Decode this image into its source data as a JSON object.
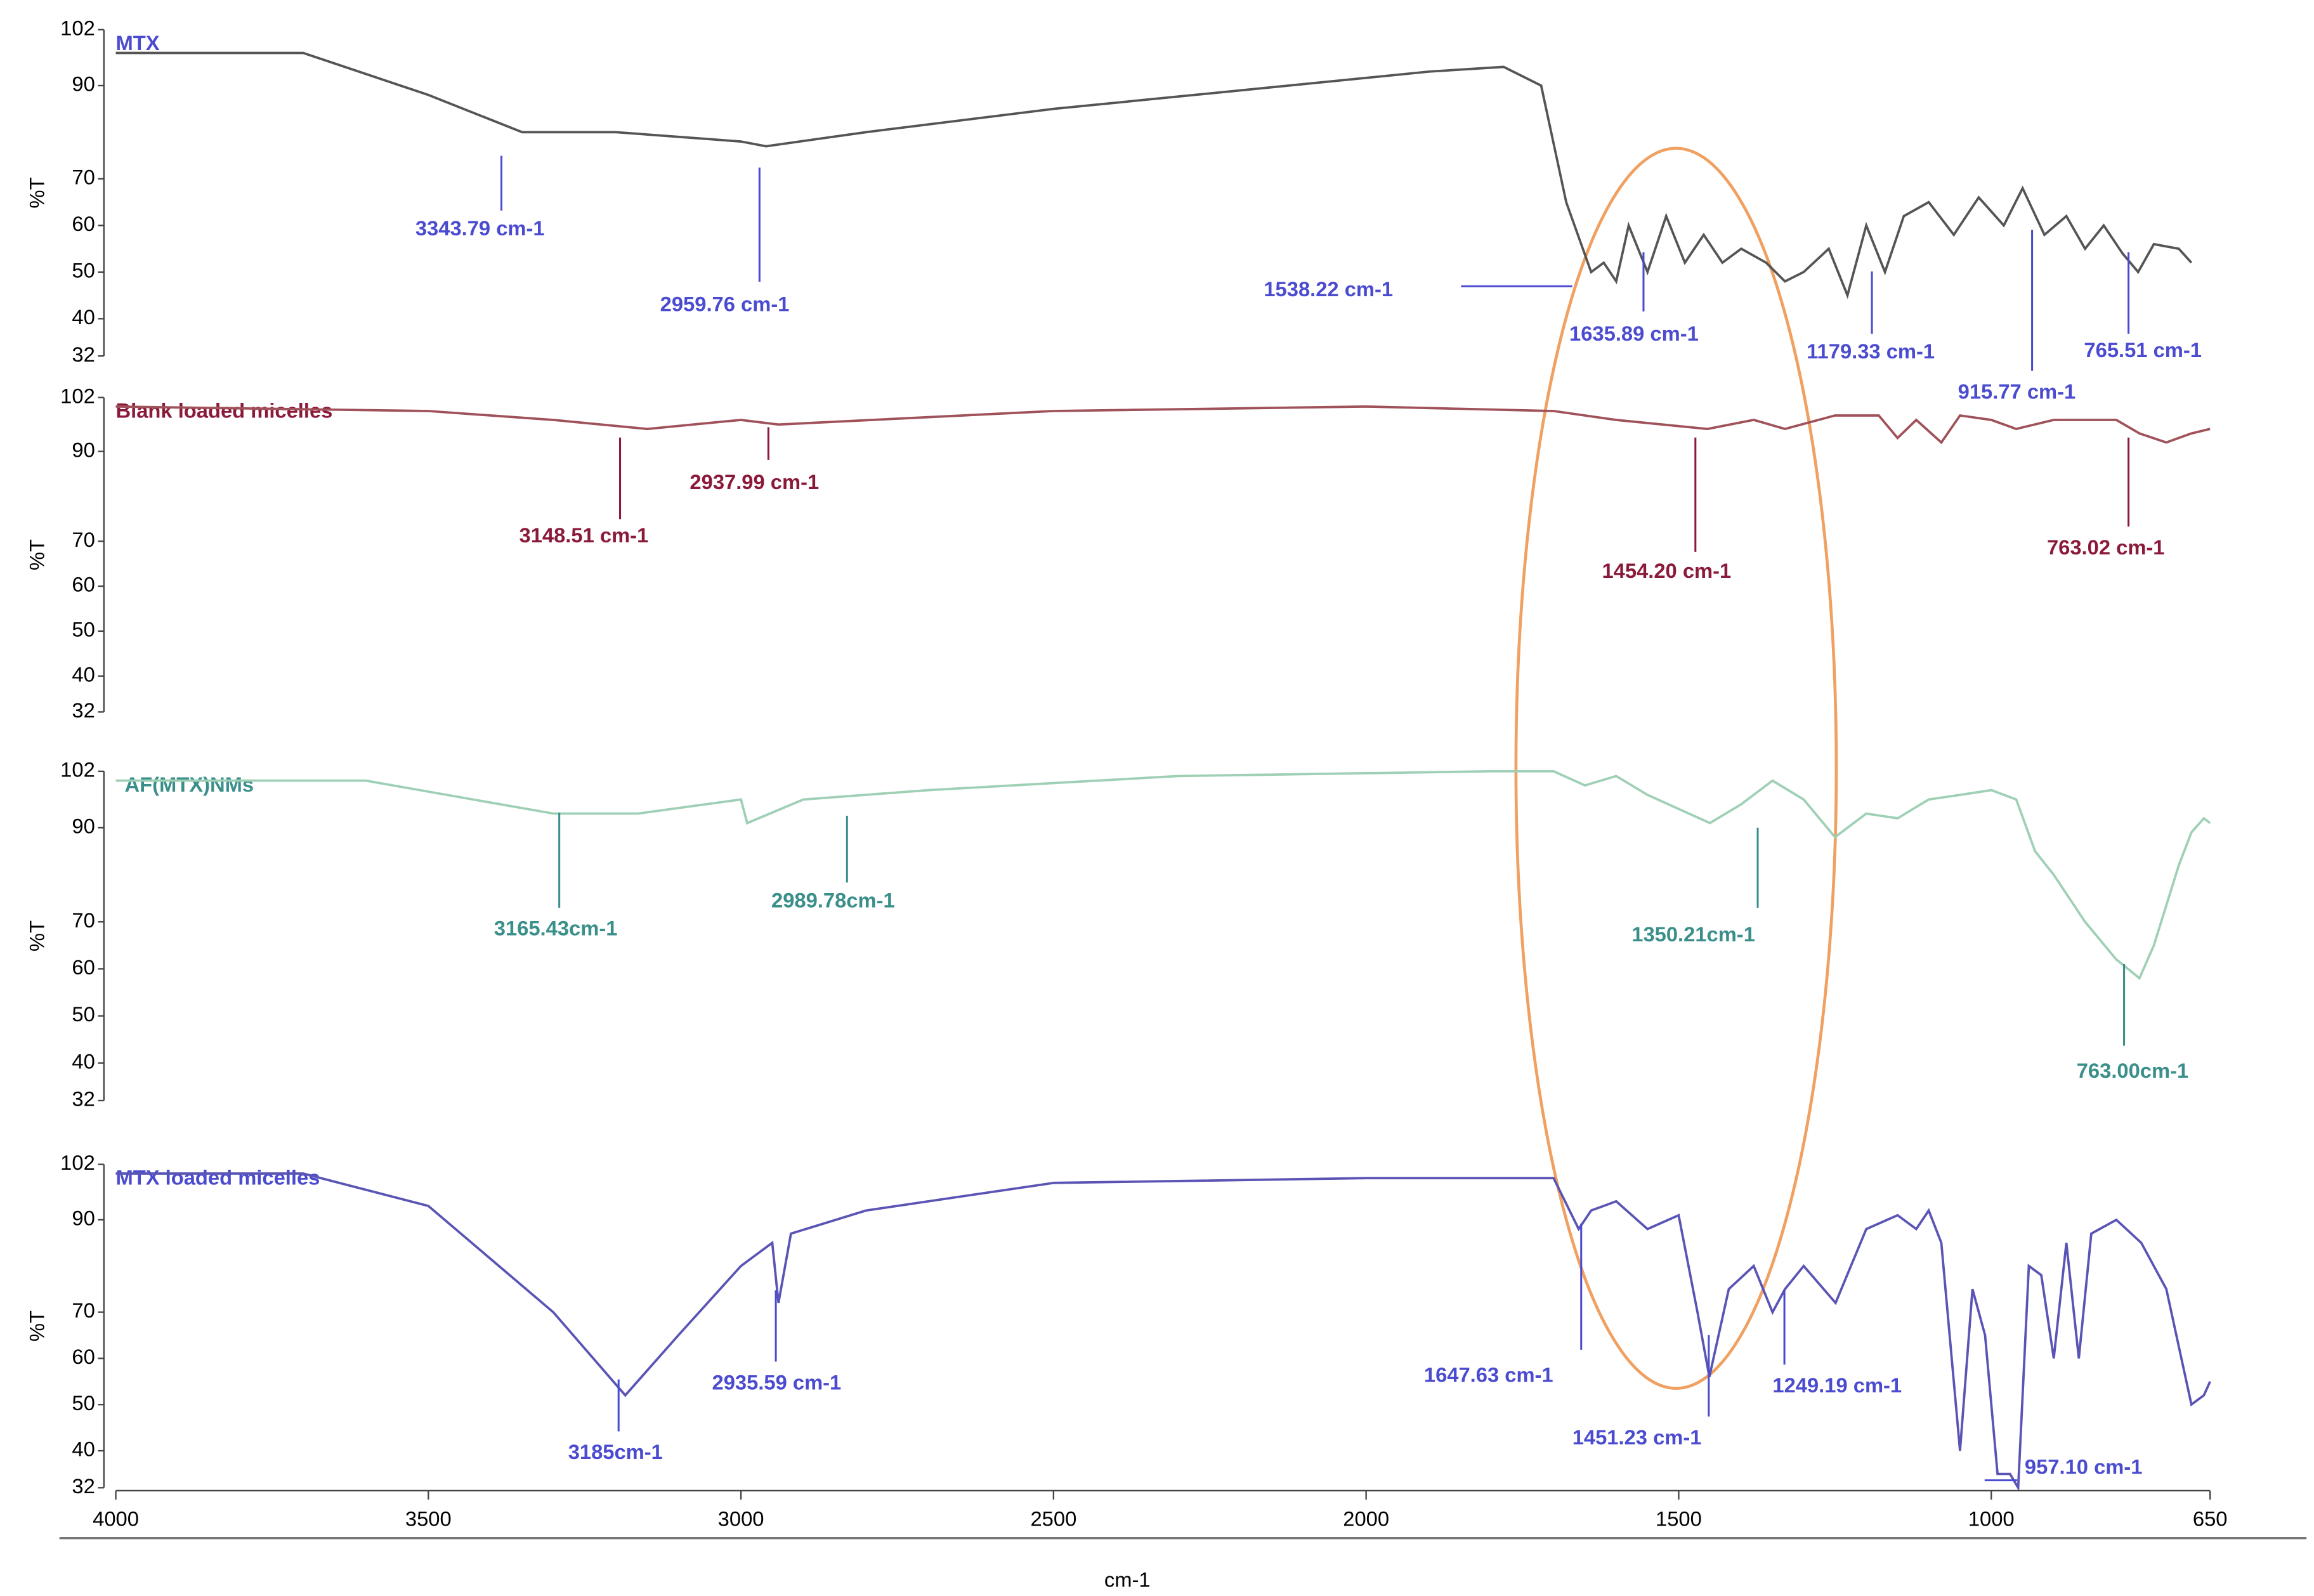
{
  "chart_data": [
    {
      "type": "line",
      "title": "MTX",
      "ylabel": "%T",
      "ylim": [
        32,
        102
      ],
      "yticks": [
        32,
        40,
        50,
        60,
        70,
        90,
        102
      ],
      "color": "#555555",
      "text_color": "#4b4bd0",
      "x": [
        4000,
        3700,
        3500,
        3350,
        3200,
        3000,
        2960,
        2800,
        2500,
        2200,
        1900,
        1780,
        1720,
        1680,
        1640,
        1620,
        1600,
        1580,
        1550,
        1520,
        1490,
        1460,
        1430,
        1400,
        1360,
        1330,
        1300,
        1260,
        1230,
        1200,
        1170,
        1140,
        1100,
        1060,
        1020,
        980,
        950,
        915,
        880,
        850,
        820,
        790,
        765,
        740,
        700,
        680
      ],
      "values": [
        97,
        97,
        88,
        80,
        80,
        78,
        77,
        80,
        85,
        89,
        93,
        94,
        90,
        65,
        50,
        52,
        48,
        60,
        50,
        62,
        52,
        58,
        52,
        55,
        52,
        48,
        50,
        55,
        45,
        60,
        50,
        62,
        65,
        58,
        66,
        60,
        68,
        58,
        62,
        55,
        60,
        54,
        50,
        56,
        55,
        52
      ],
      "annotations": [
        "3343.79 cm-1",
        "2959.76 cm-1",
        "1538.22 cm-1",
        "1635.89 cm-1",
        "1179.33 cm-1",
        "915.77 cm-1",
        "765.51 cm-1"
      ]
    },
    {
      "type": "line",
      "title": "Blank loaded micelles",
      "ylabel": "%T",
      "ylim": [
        32,
        102
      ],
      "yticks": [
        32,
        40,
        50,
        60,
        70,
        90,
        102
      ],
      "color": "#a0525a",
      "text_color": "#8b1a3a",
      "x": [
        4000,
        3500,
        3300,
        3150,
        3000,
        2940,
        2500,
        2000,
        1700,
        1600,
        1454,
        1380,
        1330,
        1250,
        1180,
        1150,
        1120,
        1080,
        1050,
        1000,
        960,
        900,
        800,
        763,
        720,
        680,
        650
      ],
      "values": [
        100,
        99,
        97,
        95,
        97,
        96,
        99,
        100,
        99,
        97,
        95,
        97,
        95,
        98,
        98,
        93,
        97,
        92,
        98,
        97,
        95,
        97,
        97,
        94,
        92,
        94,
        95
      ],
      "annotations": [
        "3148.51 cm-1",
        "2937.99 cm-1",
        "1454.20 cm-1",
        "763.02 cm-1"
      ]
    },
    {
      "type": "line",
      "title": "AF(MTX)NMs",
      "ylabel": "%T",
      "ylim": [
        32,
        102
      ],
      "yticks": [
        32,
        40,
        50,
        60,
        70,
        90,
        102
      ],
      "color": "#9fd0b5",
      "text_color": "#3a8f8a",
      "x": [
        4000,
        3600,
        3300,
        3165,
        3000,
        2990,
        2900,
        2700,
        2300,
        1800,
        1700,
        1650,
        1600,
        1550,
        1450,
        1400,
        1350,
        1300,
        1250,
        1200,
        1150,
        1100,
        1050,
        1000,
        960,
        930,
        900,
        850,
        800,
        763,
        740,
        700,
        680,
        660,
        650
      ],
      "values": [
        100,
        100,
        93,
        93,
        96,
        91,
        96,
        98,
        101,
        102,
        102,
        99,
        101,
        97,
        91,
        95,
        100,
        96,
        88,
        93,
        92,
        96,
        97,
        98,
        96,
        85,
        80,
        70,
        62,
        58,
        65,
        82,
        89,
        92,
        91
      ],
      "annotations": [
        "3165.43cm-1",
        "2989.78cm-1",
        "1350.21cm-1",
        "763.00cm-1"
      ]
    },
    {
      "type": "line",
      "title": "MTX loaded micelles",
      "ylabel": "%T",
      "ylim": [
        32,
        102
      ],
      "yticks": [
        32,
        40,
        50,
        60,
        70,
        90,
        102
      ],
      "color": "#5a55b5",
      "text_color": "#4b4bd0",
      "x": [
        4000,
        3700,
        3500,
        3300,
        3185,
        3100,
        3000,
        2950,
        2940,
        2920,
        2800,
        2500,
        2000,
        1700,
        1660,
        1640,
        1600,
        1550,
        1500,
        1470,
        1451,
        1420,
        1380,
        1350,
        1330,
        1300,
        1249,
        1200,
        1150,
        1120,
        1100,
        1080,
        1050,
        1030,
        1010,
        990,
        970,
        957,
        940,
        920,
        900,
        880,
        860,
        840,
        800,
        760,
        720,
        680,
        660,
        650
      ],
      "values": [
        100,
        100,
        93,
        70,
        52,
        65,
        80,
        85,
        72,
        87,
        92,
        98,
        99,
        99,
        88,
        92,
        94,
        88,
        91,
        70,
        56,
        75,
        80,
        70,
        75,
        80,
        72,
        88,
        91,
        88,
        92,
        85,
        40,
        75,
        65,
        35,
        35,
        32,
        80,
        78,
        60,
        85,
        60,
        87,
        90,
        85,
        75,
        50,
        52,
        55
      ],
      "annotations": [
        "3185cm-1",
        "2935.59 cm-1",
        "1647.63 cm-1",
        "1451.23 cm-1",
        "1249.19 cm-1",
        "957.10 cm-1"
      ],
      "xlabel": "cm-1",
      "xlim": [
        4000,
        650
      ],
      "xticks": [
        4000,
        3500,
        3000,
        2500,
        2000,
        1500,
        1000,
        650
      ]
    }
  ]
}
